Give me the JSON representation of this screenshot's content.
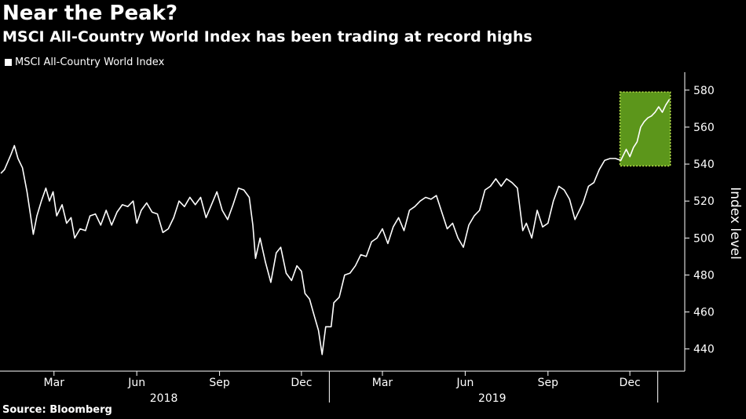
{
  "title": "Near the Peak?",
  "subtitle": "MSCI All-Country World Index has been trading at record highs",
  "source": "Source: Bloomberg",
  "colors": {
    "background": "#000000",
    "line": "#ffffff",
    "highlight_fill": "#66a61e",
    "highlight_border": "#b9e34a"
  },
  "chart_data": {
    "type": "line",
    "title": "Near the Peak?",
    "subtitle": "MSCI All-Country World Index has been trading at record highs",
    "ylabel": "Index level",
    "ylim": [
      428,
      588
    ],
    "yticks": [
      440,
      460,
      480,
      500,
      520,
      540,
      560,
      580
    ],
    "xlim": [
      "2017-12-31",
      "2020-01-31"
    ],
    "xticks": [
      {
        "date": "2018-03-01",
        "label": "Mar"
      },
      {
        "date": "2018-06-01",
        "label": "Jun"
      },
      {
        "date": "2018-09-01",
        "label": "Sep"
      },
      {
        "date": "2018-12-01",
        "label": "Dec"
      },
      {
        "date": "2019-03-01",
        "label": "Mar"
      },
      {
        "date": "2019-06-01",
        "label": "Jun"
      },
      {
        "date": "2019-09-01",
        "label": "Sep"
      },
      {
        "date": "2019-12-01",
        "label": "Dec"
      }
    ],
    "year_labels": [
      {
        "label": "2018",
        "center": "2018-07-01"
      },
      {
        "label": "2019",
        "center": "2019-07-01"
      }
    ],
    "year_separators": [
      "2019-01-01",
      "2020-01-01"
    ],
    "legend": {
      "position": "top-left",
      "entries": [
        "MSCI All-Country World Index"
      ]
    },
    "grid": false,
    "highlight": {
      "x_start": "2019-11-20",
      "x_end": "2020-01-15",
      "y_start": 539,
      "y_end": 579
    },
    "series": [
      {
        "name": "MSCI All-Country World Index",
        "points": [
          [
            "2018-01-01",
            535
          ],
          [
            "2018-01-05",
            537
          ],
          [
            "2018-01-12",
            545
          ],
          [
            "2018-01-16",
            550
          ],
          [
            "2018-01-20",
            543
          ],
          [
            "2018-01-25",
            538
          ],
          [
            "2018-01-30",
            525
          ],
          [
            "2018-02-03",
            512
          ],
          [
            "2018-02-06",
            502
          ],
          [
            "2018-02-10",
            512
          ],
          [
            "2018-02-15",
            520
          ],
          [
            "2018-02-20",
            527
          ],
          [
            "2018-02-24",
            520
          ],
          [
            "2018-02-28",
            525
          ],
          [
            "2018-03-04",
            512
          ],
          [
            "2018-03-10",
            518
          ],
          [
            "2018-03-15",
            508
          ],
          [
            "2018-03-20",
            511
          ],
          [
            "2018-03-24",
            500
          ],
          [
            "2018-03-30",
            505
          ],
          [
            "2018-04-05",
            504
          ],
          [
            "2018-04-10",
            512
          ],
          [
            "2018-04-16",
            513
          ],
          [
            "2018-04-22",
            507
          ],
          [
            "2018-04-28",
            515
          ],
          [
            "2018-05-04",
            507
          ],
          [
            "2018-05-10",
            514
          ],
          [
            "2018-05-16",
            518
          ],
          [
            "2018-05-22",
            517
          ],
          [
            "2018-05-28",
            520
          ],
          [
            "2018-06-01",
            508
          ],
          [
            "2018-06-06",
            515
          ],
          [
            "2018-06-12",
            519
          ],
          [
            "2018-06-18",
            514
          ],
          [
            "2018-06-24",
            513
          ],
          [
            "2018-06-30",
            503
          ],
          [
            "2018-07-06",
            505
          ],
          [
            "2018-07-12",
            511
          ],
          [
            "2018-07-18",
            520
          ],
          [
            "2018-07-24",
            517
          ],
          [
            "2018-07-30",
            522
          ],
          [
            "2018-08-05",
            518
          ],
          [
            "2018-08-11",
            522
          ],
          [
            "2018-08-17",
            511
          ],
          [
            "2018-08-23",
            518
          ],
          [
            "2018-08-29",
            525
          ],
          [
            "2018-09-04",
            515
          ],
          [
            "2018-09-10",
            510
          ],
          [
            "2018-09-16",
            518
          ],
          [
            "2018-09-22",
            527
          ],
          [
            "2018-09-28",
            526
          ],
          [
            "2018-10-04",
            522
          ],
          [
            "2018-10-08",
            507
          ],
          [
            "2018-10-11",
            489
          ],
          [
            "2018-10-16",
            500
          ],
          [
            "2018-10-22",
            487
          ],
          [
            "2018-10-28",
            476
          ],
          [
            "2018-11-03",
            492
          ],
          [
            "2018-11-08",
            495
          ],
          [
            "2018-11-14",
            481
          ],
          [
            "2018-11-20",
            477
          ],
          [
            "2018-11-26",
            485
          ],
          [
            "2018-12-01",
            482
          ],
          [
            "2018-12-05",
            470
          ],
          [
            "2018-12-10",
            467
          ],
          [
            "2018-12-14",
            460
          ],
          [
            "2018-12-20",
            450
          ],
          [
            "2018-12-24",
            437
          ],
          [
            "2018-12-28",
            452
          ],
          [
            "2019-01-03",
            452
          ],
          [
            "2019-01-06",
            465
          ],
          [
            "2019-01-12",
            468
          ],
          [
            "2019-01-18",
            480
          ],
          [
            "2019-01-24",
            481
          ],
          [
            "2019-01-30",
            485
          ],
          [
            "2019-02-05",
            491
          ],
          [
            "2019-02-11",
            490
          ],
          [
            "2019-02-17",
            498
          ],
          [
            "2019-02-23",
            500
          ],
          [
            "2019-03-01",
            505
          ],
          [
            "2019-03-07",
            497
          ],
          [
            "2019-03-13",
            506
          ],
          [
            "2019-03-19",
            511
          ],
          [
            "2019-03-25",
            504
          ],
          [
            "2019-03-31",
            515
          ],
          [
            "2019-04-06",
            517
          ],
          [
            "2019-04-12",
            520
          ],
          [
            "2019-04-18",
            522
          ],
          [
            "2019-04-24",
            521
          ],
          [
            "2019-04-30",
            523
          ],
          [
            "2019-05-06",
            514
          ],
          [
            "2019-05-12",
            505
          ],
          [
            "2019-05-18",
            508
          ],
          [
            "2019-05-24",
            500
          ],
          [
            "2019-05-30",
            495
          ],
          [
            "2019-06-05",
            507
          ],
          [
            "2019-06-11",
            512
          ],
          [
            "2019-06-17",
            515
          ],
          [
            "2019-06-23",
            526
          ],
          [
            "2019-06-29",
            528
          ],
          [
            "2019-07-05",
            532
          ],
          [
            "2019-07-11",
            528
          ],
          [
            "2019-07-17",
            532
          ],
          [
            "2019-07-23",
            530
          ],
          [
            "2019-07-29",
            527
          ],
          [
            "2019-08-04",
            504
          ],
          [
            "2019-08-08",
            508
          ],
          [
            "2019-08-14",
            500
          ],
          [
            "2019-08-20",
            515
          ],
          [
            "2019-08-26",
            506
          ],
          [
            "2019-09-01",
            508
          ],
          [
            "2019-09-07",
            520
          ],
          [
            "2019-09-13",
            528
          ],
          [
            "2019-09-19",
            526
          ],
          [
            "2019-09-25",
            521
          ],
          [
            "2019-10-01",
            510
          ],
          [
            "2019-10-04",
            513
          ],
          [
            "2019-10-10",
            519
          ],
          [
            "2019-10-16",
            528
          ],
          [
            "2019-10-22",
            530
          ],
          [
            "2019-10-28",
            537
          ],
          [
            "2019-11-03",
            542
          ],
          [
            "2019-11-09",
            543
          ],
          [
            "2019-11-15",
            543
          ],
          [
            "2019-11-21",
            542
          ],
          [
            "2019-11-27",
            548
          ],
          [
            "2019-12-01",
            544
          ],
          [
            "2019-12-05",
            549
          ],
          [
            "2019-12-09",
            552
          ],
          [
            "2019-12-13",
            560
          ],
          [
            "2019-12-17",
            563
          ],
          [
            "2019-12-21",
            565
          ],
          [
            "2019-12-25",
            566
          ],
          [
            "2019-12-29",
            568
          ],
          [
            "2020-01-02",
            571
          ],
          [
            "2020-01-06",
            568
          ],
          [
            "2020-01-10",
            572
          ],
          [
            "2020-01-14",
            575
          ]
        ]
      }
    ]
  }
}
